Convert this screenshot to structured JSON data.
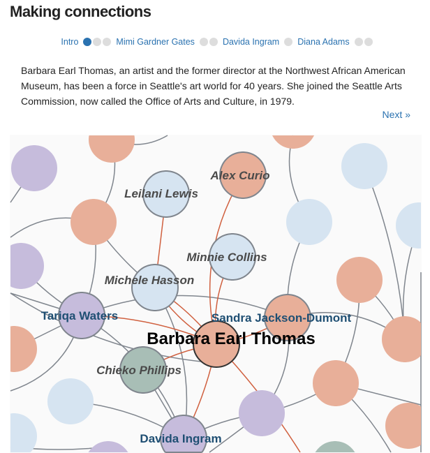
{
  "title": "Making connections",
  "nav": {
    "items": [
      {
        "label": "Intro",
        "dots": [
          true,
          false,
          false
        ]
      },
      {
        "label": "Mimi Gardner Gates",
        "dots": [
          false,
          false
        ]
      },
      {
        "label": "Davida Ingram",
        "dots": [
          false
        ]
      },
      {
        "label": "Diana Adams",
        "dots": [
          false,
          false
        ]
      }
    ]
  },
  "intro_text": "Barbara Earl Thomas, an artist and the former director at the Northwest African American Museum, has been a force in Seattle's art world for 40 years. She joined the Seattle Arts Commission, now called the Office of Arts and Culture, in 1979.",
  "next_label": "Next »",
  "colors": {
    "peach": "#e8af99",
    "blue": "#d6e4f1",
    "purple": "#c6bcdc",
    "green": "#a8beb6",
    "link_red": "#d0603f",
    "link_gray": "#7f858d",
    "label_blue": "#1f4f73",
    "label_gray": "#4a4a4a"
  },
  "network": {
    "center": "Barbara Earl Thomas",
    "people": [
      {
        "name": "Alex Curio",
        "group": "peach",
        "style": "italic"
      },
      {
        "name": "Leilani Lewis",
        "group": "blue",
        "style": "italic"
      },
      {
        "name": "Minnie Collins",
        "group": "blue",
        "style": "italic"
      },
      {
        "name": "Michele Hasson",
        "group": "blue",
        "style": "italic"
      },
      {
        "name": "Tariqa Waters",
        "group": "purple",
        "style": "highlight"
      },
      {
        "name": "Sandra Jackson-Dumont",
        "group": "peach",
        "style": "highlight"
      },
      {
        "name": "Chieko Phillips",
        "group": "green",
        "style": "italic"
      },
      {
        "name": "Davida Ingram",
        "group": "purple",
        "style": "highlight"
      }
    ]
  }
}
